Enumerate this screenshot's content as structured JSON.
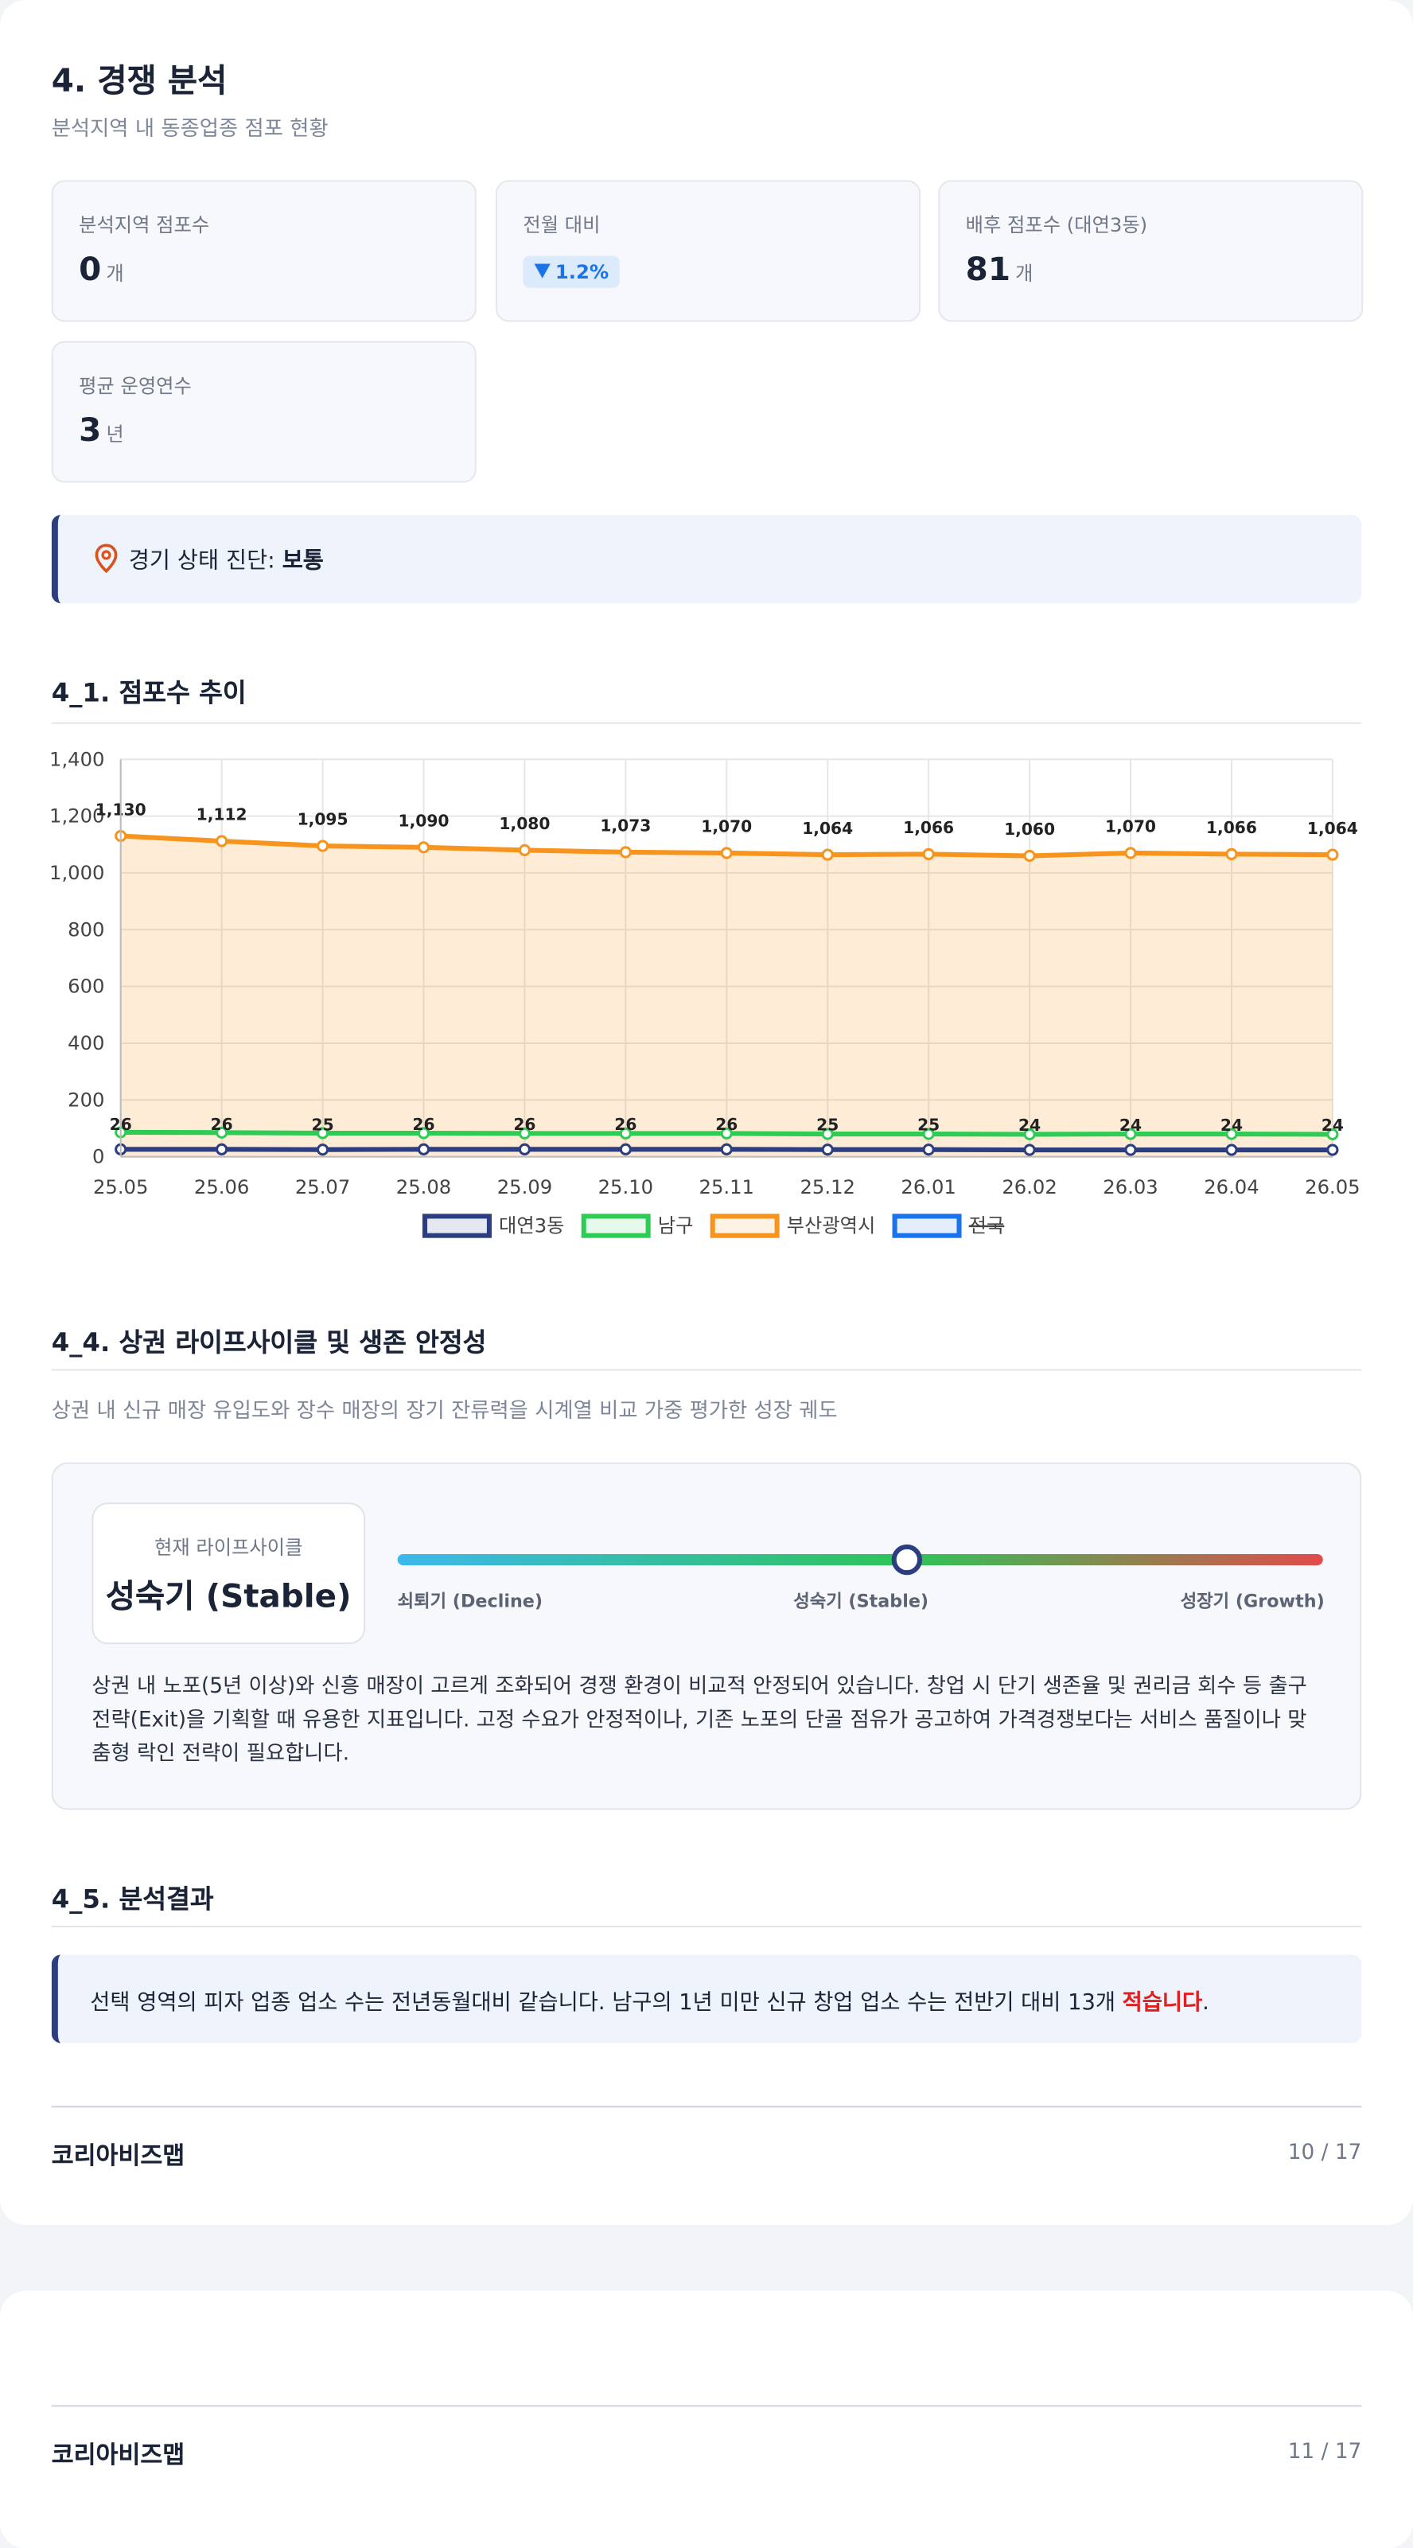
{
  "section": {
    "title": "4. 경쟁 분석",
    "subtitle": "분석지역 내 동종업종 점포 현황"
  },
  "stats": [
    {
      "label": "분석지역 점포수",
      "value": "0",
      "unit": "개"
    },
    {
      "label": "전월 대비",
      "value": "1.2%"
    },
    {
      "label": "배후 점포수 (대연3동)",
      "value": "81",
      "unit": "개"
    },
    {
      "label": "평균 운영연수",
      "value": "3",
      "unit": "년"
    }
  ],
  "diagnosis": {
    "label": "경기 상태 진단: ",
    "value": "보통"
  },
  "chart_section": {
    "title": "4_1. 점포수 추이"
  },
  "chart_data": {
    "type": "line",
    "categories": [
      "25.05",
      "25.06",
      "25.07",
      "25.08",
      "25.09",
      "25.10",
      "25.11",
      "25.12",
      "26.01",
      "26.02",
      "26.03",
      "26.04",
      "26.05"
    ],
    "ylim": [
      0,
      1400
    ],
    "yticks": [
      0,
      200,
      400,
      600,
      800,
      {
        "value": 1000,
        "label": "1,000"
      },
      {
        "value": 1200,
        "label": "1,200"
      },
      {
        "value": 1400,
        "label": "1,400"
      }
    ],
    "grid": true,
    "legend": "bottom",
    "series": [
      {
        "name": "대연3동",
        "color": "#2c3e80",
        "values": [
          26,
          26,
          25,
          26,
          26,
          26,
          26,
          25,
          25,
          24,
          24,
          24,
          24
        ],
        "labels": true
      },
      {
        "name": "남구",
        "color": "#2ecc55",
        "values": [
          86,
          85,
          83,
          83,
          82,
          82,
          82,
          80,
          80,
          79,
          80,
          80,
          79
        ]
      },
      {
        "name": "부산광역시",
        "color": "#f7941d",
        "area": true,
        "values": [
          1130,
          1112,
          1095,
          1090,
          1080,
          1073,
          1070,
          1064,
          1066,
          1060,
          1070,
          1066,
          1064
        ],
        "value_labels": [
          "1,130",
          "1,112",
          "1,095",
          "1,090",
          "1,080",
          "1,073",
          "1,070",
          "1,064",
          "1,066",
          "1,060",
          "1,070",
          "1,066",
          "1,064"
        ],
        "labels": true
      },
      {
        "name": "전국",
        "color": "#1a73e8",
        "hidden": true
      }
    ]
  },
  "lifecycle": {
    "title": "4_4. 상권 라이프사이클 및 생존 안정성",
    "subtitle": "상권 내 신규 매장 유입도와 장수 매장의 장기 잔류력을 시계열 비교 가중 평가한 성장 궤도",
    "current_label": "현재 라이프사이클",
    "current": "성숙기 (Stable)",
    "stages": [
      "쇠퇴기 (Decline)",
      "성숙기 (Stable)",
      "성장기 (Growth)"
    ],
    "description": "상권 내 노포(5년 이상)와 신흥 매장이 고르게 조화되어 경쟁 환경이 비교적 안정되어 있습니다. 창업 시 단기 생존율 및 권리금 회수 등 출구 전략(Exit)을 기획할 때 유용한 지표입니다. 고정 수요가 안정적이나, 기존 노포의 단골 점유가 공고하여 가격경쟁보다는 서비스 품질이나 맞춤형 락인 전략이 필요합니다."
  },
  "result": {
    "title": "4_5. 분석결과",
    "text": "선택 영역의 피자 업종 업소 수는 전년동월대비 같습니다. 남구의 1년 미만 신규 창업 업소 수는 전반기 대비 13개 ",
    "emphasis": "적습니다",
    "end": "."
  },
  "footers": [
    {
      "brand": "코리아비즈맵",
      "page": "10 / 17"
    },
    {
      "brand": "코리아비즈맵",
      "page": "11 / 17"
    }
  ]
}
